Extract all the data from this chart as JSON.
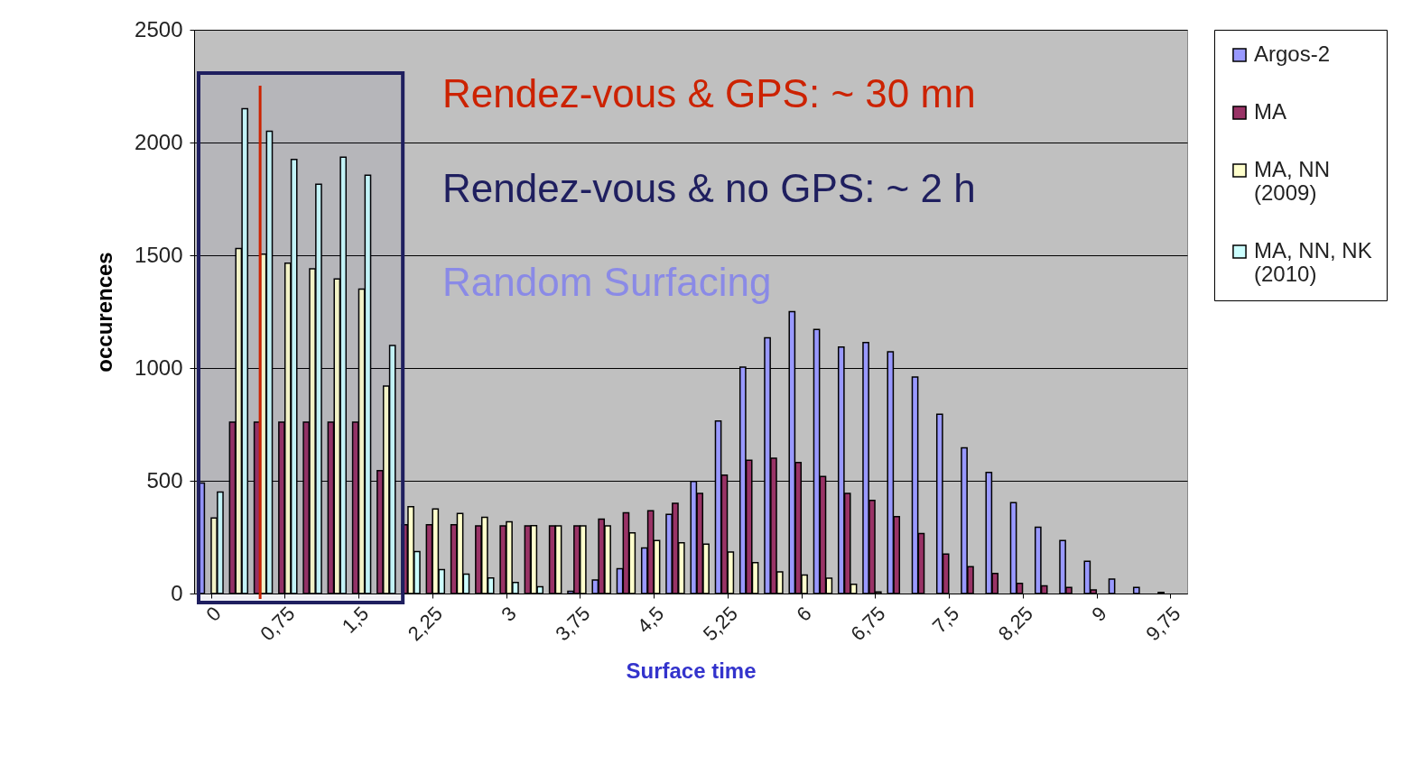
{
  "chart_data": {
    "type": "bar",
    "xlabel": "Surface time",
    "ylabel": "occurences",
    "x": [
      0,
      0.25,
      0.5,
      0.75,
      1,
      1.25,
      1.5,
      1.75,
      2,
      2.25,
      2.5,
      2.75,
      3,
      3.25,
      3.5,
      3.75,
      4,
      4.25,
      4.5,
      4.75,
      5,
      5.25,
      5.5,
      5.75,
      6,
      6.25,
      6.5,
      6.75,
      7,
      7.25,
      7.5,
      7.75,
      8,
      8.25,
      8.5,
      8.75,
      9,
      9.25,
      9.5,
      9.75
    ],
    "series": [
      {
        "name": "Argos-2",
        "color": "#9999ff",
        "values": [
          490,
          0,
          0,
          0,
          0,
          0,
          0,
          0,
          0,
          0,
          0,
          0,
          0,
          0,
          0,
          10,
          60,
          110,
          202,
          351,
          497,
          765,
          1004,
          1134,
          1250,
          1171,
          1093,
          1113,
          1072,
          960,
          795,
          646,
          537,
          403,
          294,
          235,
          143,
          64,
          27,
          5
        ]
      },
      {
        "name": "MA",
        "color": "#993366",
        "values": [
          0,
          760,
          760,
          760,
          760,
          760,
          760,
          545,
          305,
          305,
          305,
          300,
          300,
          300,
          300,
          300,
          330,
          358,
          367,
          400,
          444,
          525,
          591,
          600,
          581,
          519,
          444,
          413,
          341,
          266,
          175,
          119,
          89,
          45,
          34,
          27,
          16,
          0,
          0,
          0
        ]
      },
      {
        "name": "MA, NN (2009)",
        "color": "#ffffcc",
        "values": [
          335,
          1530,
          1505,
          1465,
          1440,
          1395,
          1350,
          920,
          385,
          375,
          355,
          338,
          318,
          301,
          300,
          300,
          300,
          269,
          235,
          225,
          219,
          184,
          137,
          96,
          82,
          68,
          41,
          7,
          0,
          0,
          0,
          0,
          0,
          0,
          0,
          0,
          0,
          0,
          0,
          0
        ]
      },
      {
        "name": "MA, NN, NK (2010)",
        "color": "#ccffff",
        "values": [
          450,
          2150,
          2050,
          1925,
          1815,
          1935,
          1855,
          1100,
          186,
          106,
          86,
          69,
          49,
          30,
          0,
          0,
          0,
          0,
          0,
          0,
          0,
          0,
          0,
          0,
          0,
          0,
          0,
          0,
          0,
          0,
          0,
          0,
          0,
          0,
          0,
          0,
          0,
          0,
          0,
          0
        ]
      }
    ],
    "xlim": [
      -0.125,
      9.875
    ],
    "xticks": [
      0,
      {
        "value": 0.75,
        "label": "0,75"
      },
      {
        "value": 1.5,
        "label": "1,5"
      },
      {
        "value": 2.25,
        "label": "2,25"
      },
      3,
      {
        "value": 3.75,
        "label": "3,75"
      },
      {
        "value": 4.5,
        "label": "4,5"
      },
      {
        "value": 5.25,
        "label": "5,25"
      },
      6,
      {
        "value": 6.75,
        "label": "6,75"
      },
      {
        "value": 7.5,
        "label": "7,5"
      },
      {
        "value": 8.25,
        "label": "8,25"
      },
      9,
      {
        "value": 9.75,
        "label": "9,75"
      }
    ],
    "ylim": [
      0,
      2500
    ],
    "yticks": [
      0,
      500,
      1000,
      1500,
      2000,
      2500
    ],
    "grid": "y",
    "legend": "right",
    "ref_lines": [
      {
        "axis": "x",
        "value": 0.5,
        "label": "Rendez-vous & GPS:  ~ 30 mn",
        "color": "#cc2200"
      }
    ],
    "bands": [
      {
        "axis": "x",
        "from": -0.125,
        "to": 1.95,
        "label": "Rendez-vous & no GPS:  ~ 2 h",
        "color": "#1f1f5f"
      }
    ],
    "annotations": [
      "Random Surfacing"
    ]
  }
}
